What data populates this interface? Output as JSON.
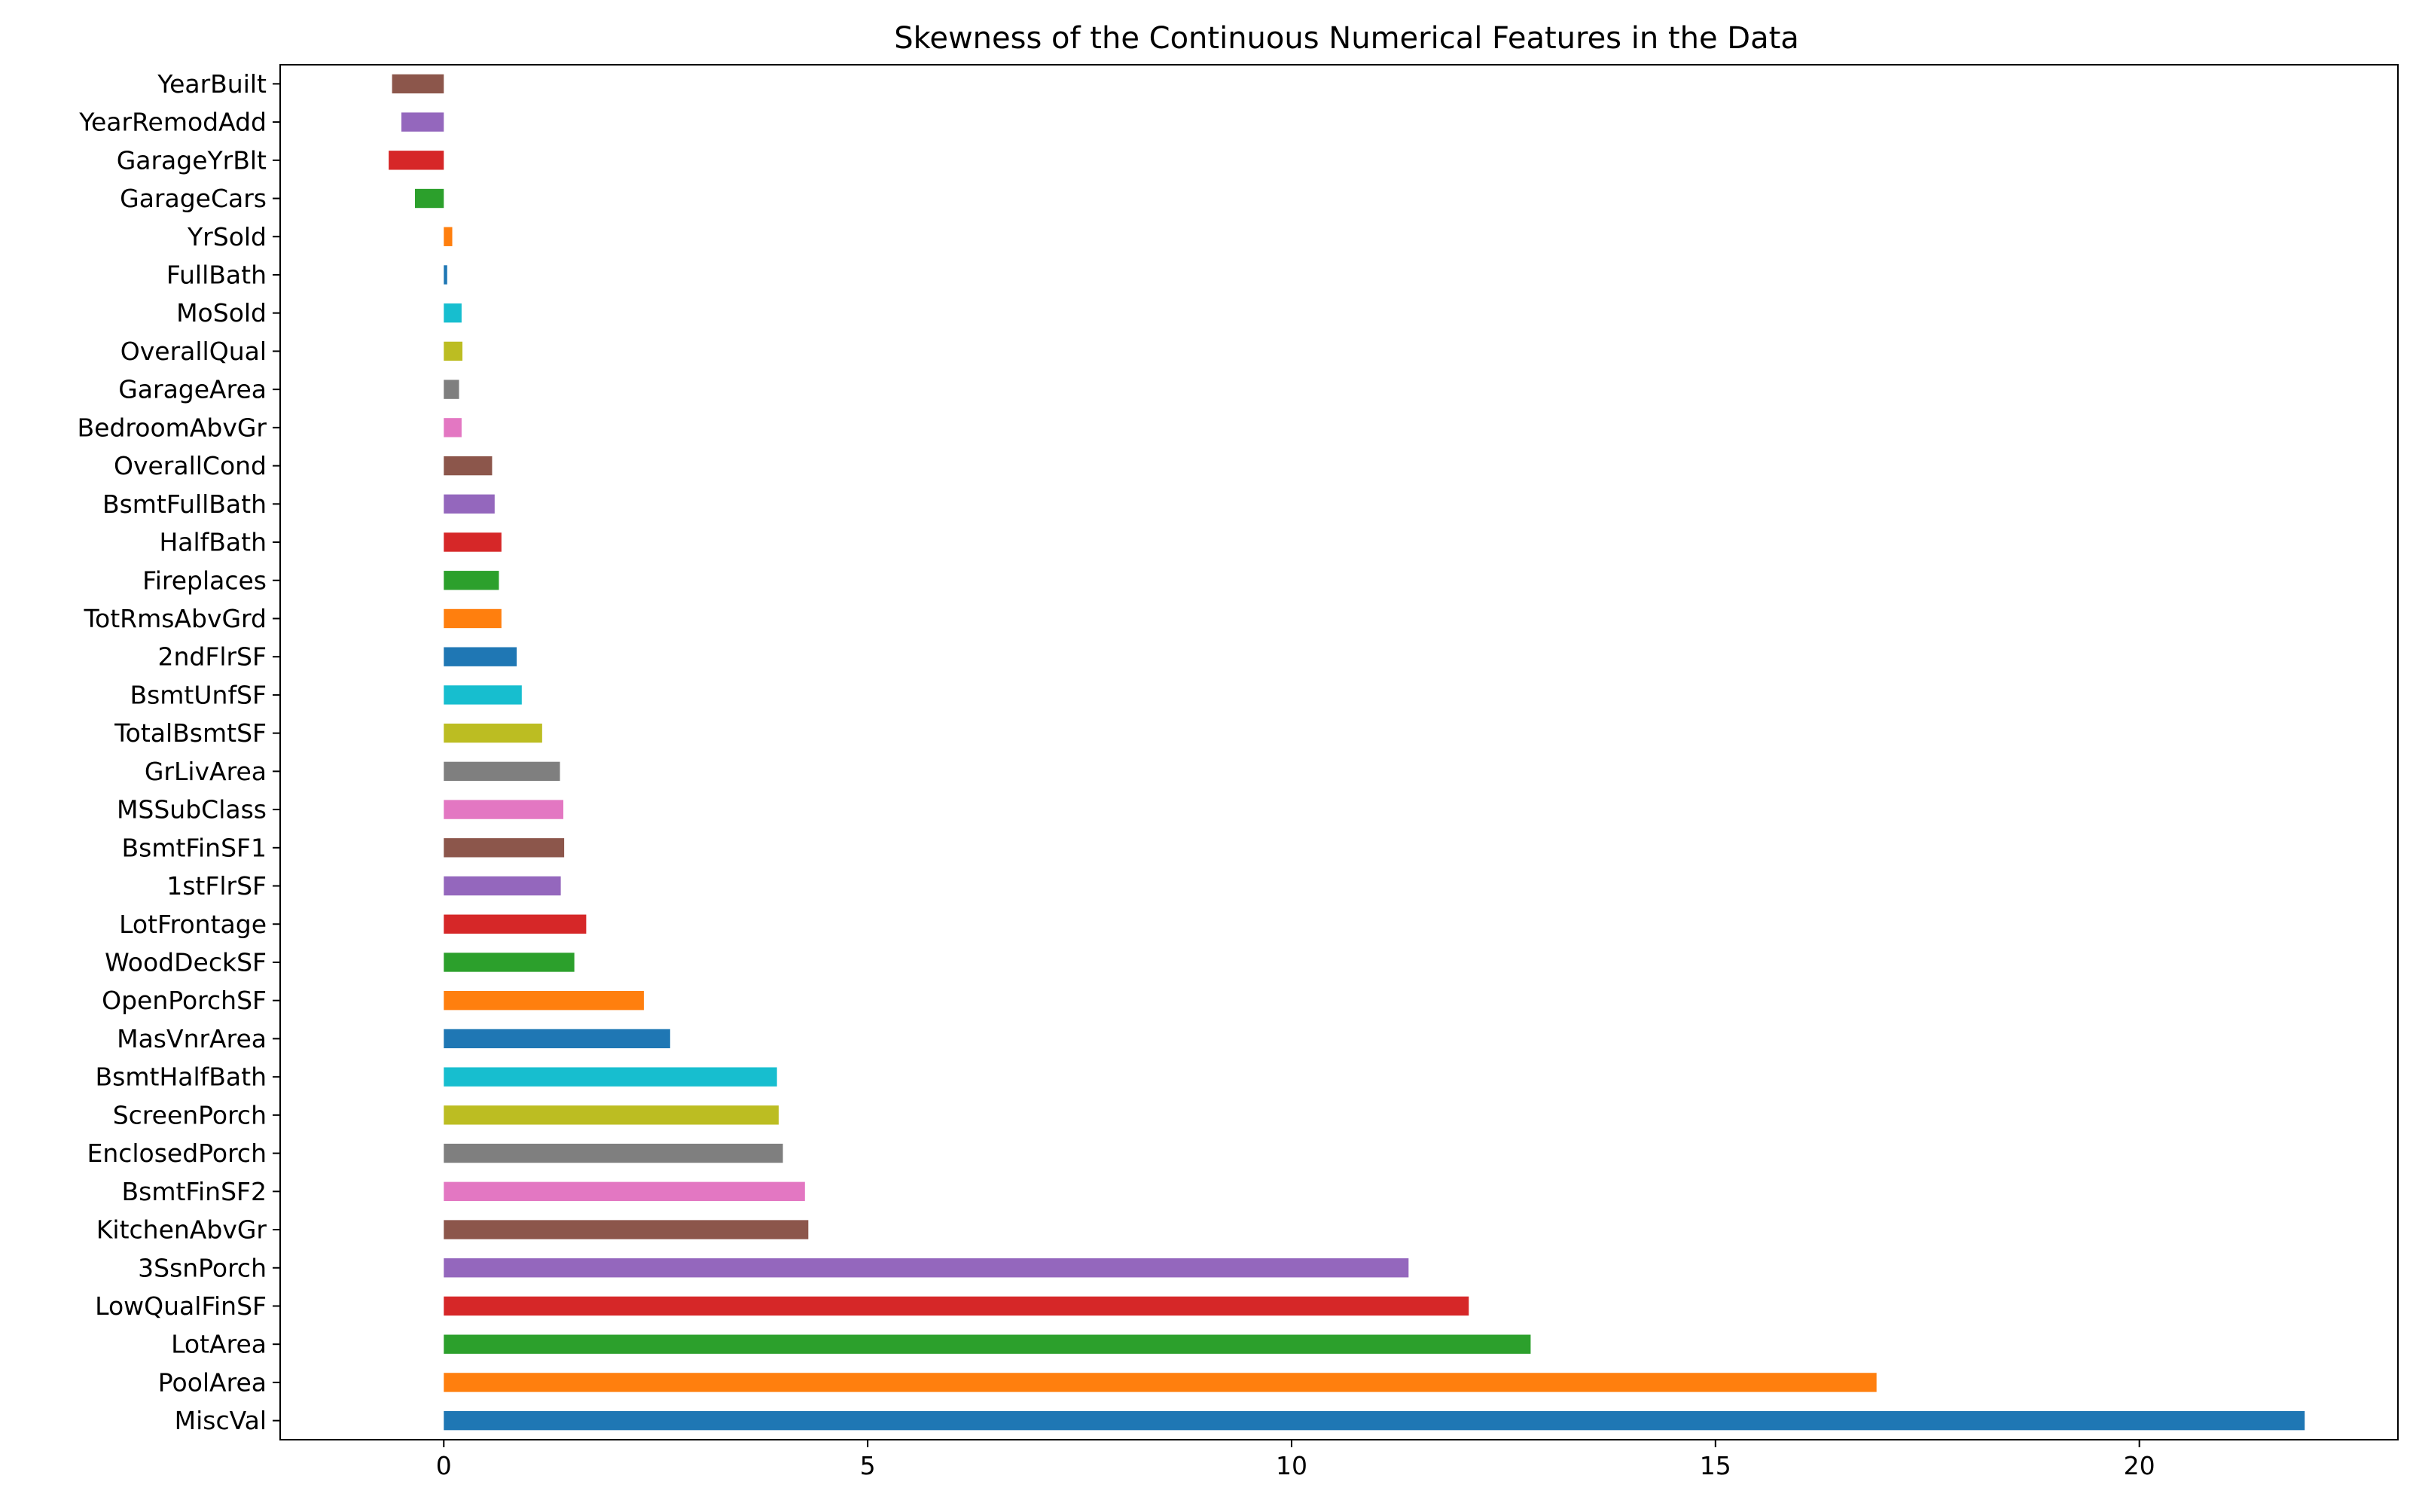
{
  "chart_data": {
    "type": "bar",
    "orientation": "horizontal",
    "title": "Skewness of the Continuous Numerical Features in the Data",
    "xlabel": "",
    "ylabel": "",
    "xlim": [
      -1.93,
      23.05
    ],
    "xticks": [
      0,
      5,
      10,
      15,
      20
    ],
    "xtick_labels": [
      "0",
      "5",
      "10",
      "15",
      "20"
    ],
    "grid": false,
    "legend": "none",
    "categories": [
      "MiscVal",
      "PoolArea",
      "LotArea",
      "LowQualFinSF",
      "3SsnPorch",
      "KitchenAbvGr",
      "BsmtFinSF2",
      "EnclosedPorch",
      "ScreenPorch",
      "BsmtHalfBath",
      "MasVnrArea",
      "OpenPorchSF",
      "WoodDeckSF",
      "LotFrontage",
      "1stFlrSF",
      "BsmtFinSF1",
      "MSSubClass",
      "GrLivArea",
      "TotalBsmtSF",
      "BsmtUnfSF",
      "2ndFlrSF",
      "TotRmsAbvGrd",
      "Fireplaces",
      "HalfBath",
      "BsmtFullBath",
      "OverallCond",
      "BedroomAbvGr",
      "GarageArea",
      "OverallQual",
      "MoSold",
      "FullBath",
      "YrSold",
      "GarageCars",
      "GarageYrBlt",
      "YearRemodAdd",
      "YearBuilt"
    ],
    "values": [
      21.95,
      16.9,
      12.82,
      12.09,
      11.38,
      4.3,
      4.26,
      4.0,
      3.95,
      3.93,
      2.67,
      2.36,
      1.54,
      1.68,
      1.38,
      1.42,
      1.41,
      1.37,
      1.16,
      0.92,
      0.86,
      0.68,
      0.65,
      0.68,
      0.6,
      0.57,
      0.21,
      0.18,
      0.22,
      0.21,
      0.04,
      0.1,
      -0.34,
      -0.65,
      -0.5,
      -0.61
    ],
    "colors": [
      "#1f77b4",
      "#ff7f0e",
      "#2ca02c",
      "#d62728",
      "#9467bd",
      "#8c564b",
      "#e377c2",
      "#7f7f7f",
      "#bcbd22",
      "#17becf"
    ]
  }
}
